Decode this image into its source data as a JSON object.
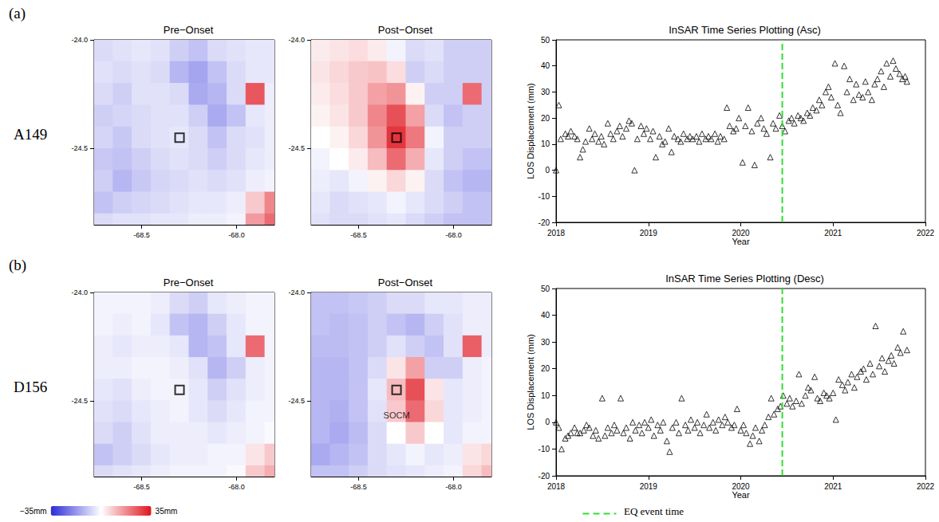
{
  "figure": {
    "rows": [
      {
        "letter": "(a)",
        "label": "A149"
      },
      {
        "letter": "(b)",
        "label": "D156"
      }
    ],
    "colorbar": {
      "range": [
        -35,
        35
      ],
      "labels": [
        "−35mm",
        "35mm"
      ],
      "colors": [
        "#2b2bd9",
        "#ffffff",
        "#e0141e"
      ]
    },
    "event": {
      "name": "EQ event time",
      "x": 2020.45,
      "color": "#33dd33",
      "line_style": "dashed"
    }
  },
  "chart_data": [
    {
      "type": "heatmap",
      "title": "Pre−Onset",
      "grid": false,
      "xlim": [
        -68.75,
        -67.8
      ],
      "ylim": [
        -24.85,
        -24.0
      ],
      "xticks": [
        -68.5,
        {
          "value": -68,
          "label": "-68.0"
        }
      ],
      "yticks": [
        {
          "value": -24,
          "label": "-24.0"
        },
        -24.5
      ],
      "lon": [
        -68.7,
        -68.6,
        -68.5,
        -68.4,
        -68.3,
        -68.2,
        -68.1,
        -68.0,
        -67.9,
        -67.8
      ],
      "lat": [
        -24.05,
        -24.15,
        -24.25,
        -24.35,
        -24.45,
        -24.55,
        -24.65,
        -24.75,
        -24.85
      ],
      "cells": [
        [
          -6,
          -5,
          -4,
          -5,
          -8,
          -10,
          -6,
          -5,
          -4,
          -4
        ],
        [
          -5,
          -6,
          -5,
          -6,
          -12,
          -15,
          -10,
          -6,
          -4,
          -4
        ],
        [
          -6,
          -8,
          -5,
          -5,
          -6,
          -14,
          -12,
          -6,
          25,
          -3
        ],
        [
          -8,
          -7,
          -6,
          -5,
          -5,
          -8,
          -14,
          -10,
          -4,
          -3
        ],
        [
          -7,
          -9,
          -6,
          -5,
          -4,
          -6,
          -10,
          -6,
          -5,
          -3
        ],
        [
          -9,
          -10,
          -8,
          -6,
          -5,
          -6,
          -8,
          -6,
          -4,
          -3
        ],
        [
          -8,
          -12,
          -9,
          -7,
          -6,
          -5,
          -6,
          -5,
          -3,
          -2
        ],
        [
          -10,
          -8,
          -7,
          -6,
          -5,
          -4,
          -4,
          -3,
          8,
          18
        ],
        [
          -6,
          -5,
          -5,
          -4,
          -4,
          -3,
          -3,
          -2,
          15,
          22
        ]
      ],
      "box": [
        -68.3,
        -24.45
      ],
      "annotations": []
    },
    {
      "type": "heatmap",
      "title": "Post−Onset",
      "grid": false,
      "xlim": [
        -68.75,
        -67.8
      ],
      "ylim": [
        -24.85,
        -24.0
      ],
      "xticks": [
        -68.5,
        {
          "value": -68,
          "label": "-68.0"
        }
      ],
      "yticks": [
        {
          "value": -24,
          "label": "-24.0"
        },
        -24.5
      ],
      "lon": [
        -68.7,
        -68.6,
        -68.5,
        -68.4,
        -68.3,
        -68.2,
        -68.1,
        -68.0,
        -67.9,
        -67.8
      ],
      "lat": [
        -24.05,
        -24.15,
        -24.25,
        -24.35,
        -24.45,
        -24.55,
        -24.65,
        -24.75,
        -24.85
      ],
      "cells": [
        [
          3,
          4,
          5,
          3,
          -2,
          -6,
          -5,
          -8,
          -8,
          -8
        ],
        [
          4,
          6,
          8,
          9,
          5,
          -8,
          -6,
          -8,
          -8,
          -8
        ],
        [
          3,
          5,
          8,
          14,
          16,
          2,
          -8,
          -8,
          22,
          -8
        ],
        [
          2,
          4,
          8,
          18,
          26,
          14,
          -6,
          -10,
          -8,
          -8
        ],
        [
          0,
          2,
          6,
          16,
          30,
          20,
          -2,
          -8,
          -8,
          -8
        ],
        [
          -2,
          0,
          3,
          10,
          22,
          12,
          -4,
          -8,
          -10,
          -10
        ],
        [
          -3,
          -4,
          -2,
          2,
          6,
          2,
          -6,
          -10,
          -12,
          -12
        ],
        [
          -4,
          -6,
          -5,
          -4,
          -2,
          -4,
          -6,
          -8,
          -10,
          -10
        ],
        [
          -5,
          -6,
          -6,
          -5,
          -4,
          -6,
          -8,
          -10,
          -10,
          -10
        ]
      ],
      "box": [
        -68.3,
        -24.45
      ],
      "annotations": []
    },
    {
      "type": "scatter",
      "title": "InSAR Time Series Plotting (Asc)",
      "grid": false,
      "x_label": "Year",
      "y_label": "LOS Displacement (mm)",
      "marker": "triangle",
      "color": "#000000",
      "xlim": [
        2018,
        2022
      ],
      "xticks": [
        2018,
        2019,
        2020,
        2021,
        2022
      ],
      "ylim": [
        -20,
        50
      ],
      "yticks": [
        -20,
        -10,
        0,
        10,
        20,
        30,
        40,
        50
      ],
      "x": [
        2018.0,
        2018.03,
        2018.05,
        2018.1,
        2018.13,
        2018.16,
        2018.2,
        2018.23,
        2018.26,
        2018.29,
        2018.32,
        2018.36,
        2018.39,
        2018.42,
        2018.46,
        2018.49,
        2018.52,
        2018.56,
        2018.59,
        2018.62,
        2018.66,
        2018.69,
        2018.72,
        2018.76,
        2018.79,
        2018.82,
        2018.85,
        2018.88,
        2018.92,
        2018.95,
        2018.98,
        2019.02,
        2019.05,
        2019.08,
        2019.12,
        2019.15,
        2019.18,
        2019.22,
        2019.25,
        2019.28,
        2019.32,
        2019.35,
        2019.38,
        2019.42,
        2019.45,
        2019.48,
        2019.52,
        2019.55,
        2019.58,
        2019.62,
        2019.65,
        2019.68,
        2019.72,
        2019.75,
        2019.78,
        2019.82,
        2019.85,
        2019.88,
        2019.92,
        2019.95,
        2019.98,
        2020.02,
        2020.05,
        2020.08,
        2020.12,
        2020.15,
        2020.18,
        2020.22,
        2020.25,
        2020.28,
        2020.32,
        2020.35,
        2020.38,
        2020.42,
        2020.45,
        2020.48,
        2020.52,
        2020.55,
        2020.58,
        2020.62,
        2020.65,
        2020.68,
        2020.72,
        2020.75,
        2020.78,
        2020.82,
        2020.85,
        2020.88,
        2020.92,
        2020.95,
        2020.98,
        2021.02,
        2021.05,
        2021.08,
        2021.12,
        2021.15,
        2021.18,
        2021.22,
        2021.25,
        2021.28,
        2021.32,
        2021.35,
        2021.38,
        2021.42,
        2021.45,
        2021.48,
        2021.52,
        2021.55,
        2021.58,
        2021.62,
        2021.65,
        2021.68,
        2021.72,
        2021.75,
        2021.78,
        2021.8
      ],
      "values": [
        0,
        25,
        12,
        14,
        13,
        15,
        13,
        12,
        5,
        8,
        11,
        16,
        12,
        14,
        11,
        13,
        10,
        18,
        14,
        12,
        15,
        17,
        13,
        16,
        19,
        18,
        0,
        12,
        17,
        14,
        16,
        12,
        15,
        5,
        13,
        10,
        11,
        16,
        7,
        13,
        12,
        11,
        14,
        12,
        13,
        12,
        13,
        11,
        14,
        12,
        13,
        12,
        14,
        11,
        13,
        12,
        24,
        17,
        15,
        16,
        20,
        3,
        17,
        24,
        15,
        2,
        18,
        20,
        16,
        14,
        5,
        18,
        16,
        21,
        17,
        15,
        19,
        20,
        18,
        21,
        20,
        19,
        22,
        21,
        24,
        23,
        27,
        25,
        30,
        32,
        28,
        41,
        25,
        22,
        40,
        30,
        35,
        27,
        33,
        29,
        28,
        34,
        30,
        27,
        33,
        35,
        38,
        32,
        41,
        36,
        42,
        39,
        37,
        35,
        36,
        34
      ]
    },
    {
      "type": "heatmap",
      "title": "Pre−Onset",
      "grid": false,
      "xlim": [
        -68.75,
        -67.8
      ],
      "ylim": [
        -24.85,
        -24.0
      ],
      "xticks": [
        -68.5,
        {
          "value": -68,
          "label": "-68.0"
        }
      ],
      "yticks": [
        {
          "value": -24,
          "label": "-24.0"
        },
        -24.5
      ],
      "lon": [
        -68.7,
        -68.6,
        -68.5,
        -68.4,
        -68.3,
        -68.2,
        -68.1,
        -68.0,
        -67.9,
        -67.8
      ],
      "lat": [
        -24.05,
        -24.15,
        -24.25,
        -24.35,
        -24.45,
        -24.55,
        -24.65,
        -24.75,
        -24.85
      ],
      "cells": [
        [
          -2,
          -2,
          -2,
          -3,
          -6,
          -8,
          -4,
          -3,
          -2,
          -2
        ],
        [
          -2,
          -3,
          -2,
          -4,
          -10,
          -12,
          -8,
          -4,
          -2,
          -2
        ],
        [
          -3,
          -4,
          -3,
          -3,
          -4,
          -12,
          -10,
          -4,
          22,
          -2
        ],
        [
          -3,
          -3,
          -2,
          -2,
          -3,
          -5,
          -12,
          -8,
          -3,
          -2
        ],
        [
          -4,
          -5,
          -3,
          -2,
          -2,
          -4,
          -8,
          -5,
          -3,
          -2
        ],
        [
          -5,
          -6,
          -4,
          -3,
          -2,
          -4,
          -6,
          -4,
          -2,
          -2
        ],
        [
          -6,
          -8,
          -5,
          -3,
          -3,
          -3,
          -4,
          -3,
          -2,
          -1
        ],
        [
          -10,
          -8,
          -6,
          -4,
          -3,
          -3,
          -2,
          -2,
          4,
          8
        ],
        [
          -6,
          -5,
          -4,
          -3,
          -2,
          -2,
          -2,
          -1,
          8,
          12
        ]
      ],
      "box": [
        -68.3,
        -24.45
      ],
      "annotations": []
    },
    {
      "type": "heatmap",
      "title": "Post−Onset",
      "grid": false,
      "xlim": [
        -68.75,
        -67.8
      ],
      "ylim": [
        -24.85,
        -24.0
      ],
      "xticks": [
        -68.5,
        {
          "value": -68,
          "label": "-68.0"
        }
      ],
      "yticks": [
        {
          "value": -24,
          "label": "-24.0"
        },
        -24.5
      ],
      "lon": [
        -68.7,
        -68.6,
        -68.5,
        -68.4,
        -68.3,
        -68.2,
        -68.1,
        -68.0,
        -67.9,
        -67.8
      ],
      "lat": [
        -24.05,
        -24.15,
        -24.25,
        -24.35,
        -24.45,
        -24.55,
        -24.65,
        -24.75,
        -24.85
      ],
      "cells": [
        [
          -10,
          -10,
          -9,
          -8,
          -6,
          -6,
          -4,
          -4,
          -3,
          -3
        ],
        [
          -10,
          -11,
          -10,
          -8,
          -10,
          -12,
          -8,
          -5,
          -3,
          -3
        ],
        [
          -11,
          -11,
          -10,
          -8,
          -5,
          -8,
          -10,
          -5,
          24,
          -3
        ],
        [
          -12,
          -12,
          -10,
          -6,
          4,
          14,
          -8,
          -8,
          -3,
          -2
        ],
        [
          -12,
          -12,
          -10,
          -4,
          10,
          26,
          4,
          -4,
          -3,
          -2
        ],
        [
          -12,
          -13,
          -10,
          -5,
          8,
          22,
          6,
          -4,
          -3,
          -2
        ],
        [
          -12,
          -14,
          -11,
          -6,
          0,
          8,
          0,
          -4,
          -2,
          -2
        ],
        [
          -14,
          -12,
          -10,
          -6,
          -4,
          -2,
          -4,
          -3,
          4,
          6
        ],
        [
          -10,
          -10,
          -8,
          -6,
          -5,
          -4,
          -3,
          -2,
          6,
          10
        ]
      ],
      "box": [
        -68.3,
        -24.45
      ],
      "annotations": [
        {
          "text": "SOCM",
          "x": -68.3,
          "y": -24.54
        }
      ]
    },
    {
      "type": "scatter",
      "title": "InSAR Time Series Plotting (Desc)",
      "grid": false,
      "x_label": "Year",
      "y_label": "LOS Displacement (mm)",
      "marker": "triangle",
      "color": "#000000",
      "xlim": [
        2018,
        2022
      ],
      "xticks": [
        2018,
        2019,
        2020,
        2021,
        2022
      ],
      "ylim": [
        -20,
        50
      ],
      "yticks": [
        -20,
        -10,
        0,
        10,
        20,
        30,
        40,
        50
      ],
      "x": [
        2018.0,
        2018.03,
        2018.06,
        2018.1,
        2018.13,
        2018.16,
        2018.2,
        2018.23,
        2018.26,
        2018.3,
        2018.33,
        2018.36,
        2018.4,
        2018.43,
        2018.46,
        2018.5,
        2018.53,
        2018.56,
        2018.6,
        2018.63,
        2018.66,
        2018.7,
        2018.73,
        2018.76,
        2018.8,
        2018.83,
        2018.86,
        2018.9,
        2018.93,
        2018.96,
        2019.0,
        2019.03,
        2019.06,
        2019.1,
        2019.13,
        2019.16,
        2019.2,
        2019.23,
        2019.26,
        2019.3,
        2019.33,
        2019.36,
        2019.4,
        2019.43,
        2019.46,
        2019.5,
        2019.53,
        2019.56,
        2019.6,
        2019.63,
        2019.66,
        2019.7,
        2019.73,
        2019.76,
        2019.8,
        2019.83,
        2019.86,
        2019.9,
        2019.93,
        2019.96,
        2020.0,
        2020.03,
        2020.06,
        2020.1,
        2020.13,
        2020.16,
        2020.2,
        2020.23,
        2020.26,
        2020.3,
        2020.33,
        2020.36,
        2020.4,
        2020.43,
        2020.46,
        2020.5,
        2020.53,
        2020.56,
        2020.6,
        2020.63,
        2020.66,
        2020.7,
        2020.73,
        2020.76,
        2020.8,
        2020.83,
        2020.86,
        2020.9,
        2020.93,
        2020.96,
        2021.0,
        2021.03,
        2021.06,
        2021.1,
        2021.13,
        2021.16,
        2021.2,
        2021.23,
        2021.26,
        2021.3,
        2021.33,
        2021.36,
        2021.4,
        2021.43,
        2021.46,
        2021.5,
        2021.53,
        2021.56,
        2021.6,
        2021.63,
        2021.66,
        2021.7,
        2021.73,
        2021.76,
        2021.8
      ],
      "values": [
        0,
        -2,
        -10,
        -6,
        -5,
        -4,
        -2,
        -4,
        -4,
        -3,
        -1,
        -2,
        -5,
        -3,
        -6,
        9,
        -5,
        -2,
        -4,
        -1,
        -3,
        9,
        -4,
        -2,
        -6,
        0,
        -3,
        -1,
        -4,
        0,
        -2,
        1,
        -5,
        -1,
        -3,
        0,
        -7,
        -11,
        -2,
        0,
        -4,
        9,
        -1,
        -3,
        1,
        -2,
        0,
        -4,
        -1,
        3,
        -2,
        0,
        -3,
        1,
        -1,
        2,
        0,
        -2,
        -1,
        5,
        -3,
        -1,
        -4,
        -8,
        -5,
        -2,
        -7,
        -3,
        -1,
        2,
        9,
        3,
        5,
        6,
        10,
        7,
        9,
        6,
        8,
        18,
        7,
        10,
        13,
        12,
        17,
        9,
        8,
        11,
        10,
        9,
        11,
        1,
        16,
        14,
        12,
        15,
        18,
        13,
        17,
        19,
        20,
        16,
        22,
        18,
        36,
        21,
        24,
        19,
        23,
        25,
        22,
        28,
        26,
        34,
        27
      ]
    }
  ]
}
